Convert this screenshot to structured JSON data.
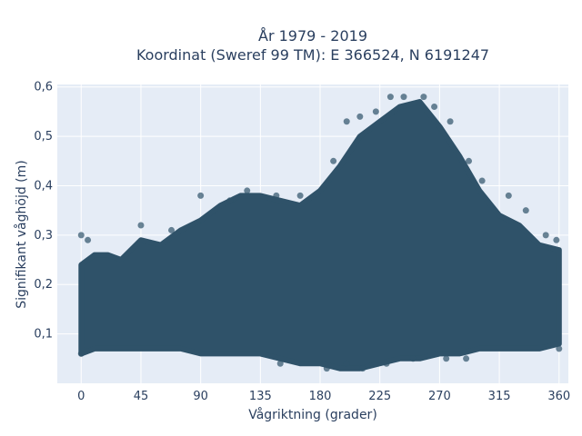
{
  "chart_data": {
    "type": "scatter",
    "title": "År 1979 - 2019",
    "subtitle": "Koordinat (Sweref 99 TM): E 366524, N 6191247",
    "xlabel": "Vågriktning (grader)",
    "ylabel": "Signifikant våghöjd (m)",
    "xlim": [
      -18,
      367
    ],
    "ylim": [
      0.0,
      0.605
    ],
    "x_ticks": [
      0,
      45,
      90,
      135,
      180,
      225,
      270,
      315,
      360
    ],
    "y_ticks": [
      0.1,
      0.2,
      0.3,
      0.4,
      0.5,
      0.6
    ],
    "y_tick_labels": [
      "0,1",
      "0,2",
      "0,3",
      "0,4",
      "0,5",
      "0,6"
    ],
    "grid": true,
    "marker_color": "#2f5269",
    "envelope": {
      "x": [
        0,
        10,
        20,
        30,
        45,
        60,
        75,
        90,
        105,
        120,
        135,
        150,
        165,
        180,
        195,
        210,
        225,
        240,
        255,
        270,
        285,
        300,
        315,
        330,
        345,
        360
      ],
      "lower": [
        0.06,
        0.07,
        0.07,
        0.07,
        0.07,
        0.07,
        0.07,
        0.06,
        0.06,
        0.06,
        0.06,
        0.05,
        0.04,
        0.04,
        0.03,
        0.03,
        0.04,
        0.05,
        0.05,
        0.06,
        0.06,
        0.07,
        0.07,
        0.07,
        0.07,
        0.08
      ],
      "upper": [
        0.24,
        0.26,
        0.26,
        0.25,
        0.29,
        0.28,
        0.31,
        0.33,
        0.36,
        0.38,
        0.38,
        0.37,
        0.36,
        0.39,
        0.44,
        0.5,
        0.53,
        0.56,
        0.57,
        0.52,
        0.46,
        0.39,
        0.34,
        0.32,
        0.28,
        0.27
      ]
    },
    "outliers": [
      {
        "x": 0,
        "y": 0.3
      },
      {
        "x": 5,
        "y": 0.29
      },
      {
        "x": 45,
        "y": 0.32
      },
      {
        "x": 68,
        "y": 0.31
      },
      {
        "x": 90,
        "y": 0.38
      },
      {
        "x": 112,
        "y": 0.37
      },
      {
        "x": 125,
        "y": 0.39
      },
      {
        "x": 147,
        "y": 0.38
      },
      {
        "x": 165,
        "y": 0.38
      },
      {
        "x": 190,
        "y": 0.45
      },
      {
        "x": 200,
        "y": 0.53
      },
      {
        "x": 210,
        "y": 0.54
      },
      {
        "x": 222,
        "y": 0.55
      },
      {
        "x": 233,
        "y": 0.58
      },
      {
        "x": 243,
        "y": 0.58
      },
      {
        "x": 258,
        "y": 0.58
      },
      {
        "x": 266,
        "y": 0.56
      },
      {
        "x": 278,
        "y": 0.53
      },
      {
        "x": 292,
        "y": 0.45
      },
      {
        "x": 302,
        "y": 0.41
      },
      {
        "x": 322,
        "y": 0.38
      },
      {
        "x": 335,
        "y": 0.35
      },
      {
        "x": 350,
        "y": 0.3
      },
      {
        "x": 358,
        "y": 0.29
      },
      {
        "x": 150,
        "y": 0.04
      },
      {
        "x": 185,
        "y": 0.03
      },
      {
        "x": 200,
        "y": 0.04
      },
      {
        "x": 212,
        "y": 0.03
      },
      {
        "x": 230,
        "y": 0.04
      },
      {
        "x": 250,
        "y": 0.05
      },
      {
        "x": 275,
        "y": 0.05
      },
      {
        "x": 290,
        "y": 0.05
      },
      {
        "x": 0,
        "y": 0.06
      },
      {
        "x": 360,
        "y": 0.07
      }
    ]
  }
}
